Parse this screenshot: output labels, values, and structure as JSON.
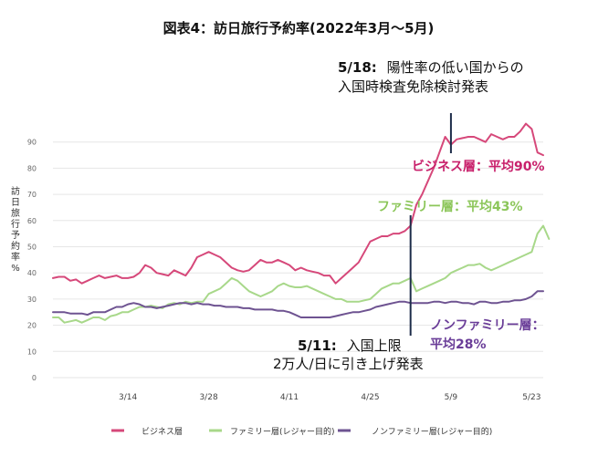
{
  "chart_data": {
    "type": "line",
    "title": "図表4：訪日旅行予約率(2022年3月～5月)",
    "ylabel": "訪日旅行予約率%",
    "xlabel": "",
    "ylim": [
      0,
      100
    ],
    "yticks": [
      0,
      10,
      20,
      30,
      40,
      50,
      60,
      70,
      80,
      90
    ],
    "x_start_day": 1,
    "x_ticks": [
      {
        "label": "3/14",
        "day": 14
      },
      {
        "label": "3/28",
        "day": 28
      },
      {
        "label": "4/11",
        "day": 42
      },
      {
        "label": "4/25",
        "day": 56
      },
      {
        "label": "5/9",
        "day": 70
      },
      {
        "label": "5/23",
        "day": 84
      }
    ],
    "grid": true,
    "legend_position": "bottom",
    "series": [
      {
        "name": "ビジネス層",
        "color": "#d6487a",
        "values": [
          38,
          38.5,
          38.5,
          37,
          37.5,
          36,
          37,
          38,
          39,
          38,
          38.5,
          39,
          38,
          38,
          38.5,
          40,
          43,
          42,
          40,
          39.5,
          39,
          41,
          40,
          39,
          42,
          46,
          47,
          48,
          47,
          46,
          44,
          42,
          41,
          40.5,
          41,
          43,
          45,
          44,
          44,
          45,
          44,
          43,
          41,
          42,
          41,
          40.5,
          40,
          39,
          39,
          36,
          38,
          40,
          42,
          44,
          48,
          52,
          53,
          54,
          54,
          55,
          55,
          56,
          58,
          66,
          70,
          75,
          80,
          86,
          92,
          89,
          91,
          91.5,
          92,
          92,
          91,
          90,
          93,
          92,
          91,
          92,
          92,
          94,
          97,
          95,
          86,
          85
        ]
      },
      {
        "name": "ファミリー層(レジャー目的)",
        "color": "#a8d88a",
        "values": [
          23,
          23,
          21,
          21.5,
          22,
          21,
          22,
          23,
          23,
          22,
          23.5,
          24,
          25,
          25,
          26,
          27,
          27,
          27.5,
          27,
          26.5,
          28,
          28.5,
          28,
          29,
          28.5,
          29,
          29,
          32,
          33,
          34,
          36,
          38,
          37,
          35,
          33,
          32,
          31,
          32,
          33,
          35,
          36,
          35,
          34.5,
          34.5,
          35,
          34,
          33,
          32,
          31,
          30,
          30,
          29,
          29,
          29,
          29.5,
          30,
          32,
          34,
          35,
          36,
          36,
          37,
          38,
          33,
          34,
          35,
          36,
          37,
          38,
          40,
          41,
          42,
          43,
          43,
          43.5,
          42,
          41,
          42,
          43,
          44,
          45,
          46,
          47,
          48,
          55,
          58,
          53
        ]
      },
      {
        "name": "ノンファミリー層(レジャー目的)",
        "color": "#6e5391",
        "values": [
          25,
          25,
          25,
          24.5,
          24.5,
          24.5,
          24,
          25,
          25,
          25,
          26,
          27,
          27,
          28,
          28.5,
          28,
          27,
          27,
          26.5,
          27,
          27.5,
          28,
          28.5,
          28.5,
          28,
          28.5,
          28,
          28,
          27.5,
          27.5,
          27,
          27,
          27,
          26.5,
          26.5,
          26,
          26,
          26,
          26,
          25.5,
          25.5,
          25,
          24,
          23,
          23,
          23,
          23,
          23,
          23,
          23.5,
          24,
          24.5,
          25,
          25,
          25.5,
          26,
          27,
          27.5,
          28,
          28.5,
          29,
          29,
          28.5,
          28.5,
          28.5,
          28.5,
          29,
          29,
          28.5,
          29,
          29,
          28.5,
          28.5,
          28,
          29,
          29,
          28.5,
          28.5,
          29,
          29,
          29.5,
          29.5,
          30,
          31,
          33,
          33
        ]
      }
    ],
    "annotations": [
      {
        "label": "5/18:",
        "text_lines": [
          "陽性率の低い国からの",
          "入国時検査免除検討発表"
        ],
        "day": 70
      },
      {
        "label": "5/11:",
        "text_lines": [
          "入国上限",
          "2万人/日に引き上げ発表"
        ],
        "day": 63
      }
    ],
    "series_callouts": [
      {
        "series": "ビジネス層",
        "text": "ビジネス層：平均90%",
        "color": "#c8206b"
      },
      {
        "series": "ファミリー層(レジャー目的)",
        "text": "ファミリー層：平均43%",
        "color": "#8cc65a"
      },
      {
        "series": "ノンファミリー層(レジャー目的)",
        "text_lines": [
          "ノンファミリー層：",
          "平均28%"
        ],
        "color": "#6a3d98"
      }
    ]
  }
}
